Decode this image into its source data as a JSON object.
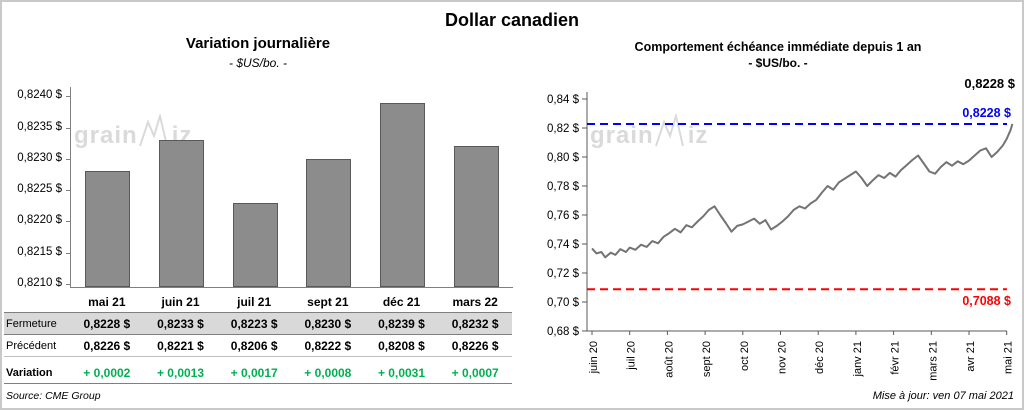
{
  "page": {
    "title": "Dollar canadien",
    "source": "Source: CME Group",
    "updated": "Mise à jour: ven 07 mai 2021",
    "watermark": {
      "pre": "grain",
      "post": "iz"
    }
  },
  "colors": {
    "bar_fill": "#8c8c8c",
    "bar_border": "#595959",
    "line": "#737373",
    "resistance_blue": "#0000ff",
    "support_red": "#ff0000",
    "variation_green": "#00b050",
    "table_shade": "#d9d9d9"
  },
  "chart_data": [
    {
      "type": "bar",
      "title": "Variation journalière",
      "subtitle": "- $US/bo. -",
      "categories": [
        "mai 21",
        "juin 21",
        "juil 21",
        "sept 21",
        "déc 21",
        "mars 22"
      ],
      "values": [
        0.8228,
        0.8233,
        0.8223,
        0.823,
        0.8239,
        0.8232
      ],
      "ylim": [
        0.82095,
        0.82415
      ],
      "yticks": [
        0.821,
        0.8215,
        0.822,
        0.8225,
        0.823,
        0.8235,
        0.824
      ],
      "ytick_labels": [
        "0,8210 $",
        "0,8215 $",
        "0,8220 $",
        "0,8225 $",
        "0,8230 $",
        "0,8235 $",
        "0,8240 $"
      ],
      "grid": false,
      "legend": false
    },
    {
      "type": "line",
      "title": "Comportement échéance immédiate depuis 1 an",
      "subtitle": "- $US/bo. -",
      "x_labels": [
        "juin 20",
        "juil 20",
        "août 20",
        "sept 20",
        "oct 20",
        "nov 20",
        "déc 20",
        "janv 21",
        "févr 21",
        "mars 21",
        "avr 21",
        "mai 21"
      ],
      "ylim": [
        0.68,
        0.8435
      ],
      "yticks": [
        0.68,
        0.7,
        0.72,
        0.74,
        0.76,
        0.78,
        0.8,
        0.82,
        0.84
      ],
      "ytick_labels": [
        "0,68 $",
        "0,70 $",
        "0,72 $",
        "0,74 $",
        "0,76 $",
        "0,78 $",
        "0,80 $",
        "0,82 $",
        "0,84 $"
      ],
      "grid": false,
      "legend": false,
      "annotations": {
        "last_value_label": "0,8228 $",
        "resistance": {
          "value": 0.8228,
          "label": "0,8228 $"
        },
        "support": {
          "value": 0.7088,
          "label": "0,7088 $"
        }
      },
      "series": [
        {
          "name": "échéance immédiate",
          "points": [
            [
              0,
              0.737
            ],
            [
              0.12,
              0.7335
            ],
            [
              0.25,
              0.7345
            ],
            [
              0.35,
              0.7308
            ],
            [
              0.5,
              0.734
            ],
            [
              0.62,
              0.7325
            ],
            [
              0.75,
              0.7365
            ],
            [
              0.9,
              0.7345
            ],
            [
              1.0,
              0.7375
            ],
            [
              1.15,
              0.736
            ],
            [
              1.3,
              0.7395
            ],
            [
              1.45,
              0.738
            ],
            [
              1.6,
              0.742
            ],
            [
              1.75,
              0.7405
            ],
            [
              1.9,
              0.745
            ],
            [
              2.05,
              0.7475
            ],
            [
              2.2,
              0.7505
            ],
            [
              2.35,
              0.748
            ],
            [
              2.5,
              0.753
            ],
            [
              2.65,
              0.7515
            ],
            [
              2.8,
              0.7555
            ],
            [
              2.95,
              0.759
            ],
            [
              3.1,
              0.7635
            ],
            [
              3.25,
              0.766
            ],
            [
              3.4,
              0.76
            ],
            [
              3.55,
              0.7545
            ],
            [
              3.7,
              0.7485
            ],
            [
              3.85,
              0.7525
            ],
            [
              4.0,
              0.7535
            ],
            [
              4.15,
              0.7555
            ],
            [
              4.3,
              0.7575
            ],
            [
              4.45,
              0.754
            ],
            [
              4.6,
              0.7565
            ],
            [
              4.75,
              0.75
            ],
            [
              4.9,
              0.7525
            ],
            [
              5.05,
              0.7555
            ],
            [
              5.2,
              0.759
            ],
            [
              5.35,
              0.7635
            ],
            [
              5.5,
              0.766
            ],
            [
              5.65,
              0.7645
            ],
            [
              5.8,
              0.768
            ],
            [
              5.95,
              0.7705
            ],
            [
              6.1,
              0.7755
            ],
            [
              6.25,
              0.78
            ],
            [
              6.4,
              0.7775
            ],
            [
              6.55,
              0.7825
            ],
            [
              6.7,
              0.785
            ],
            [
              6.85,
              0.7875
            ],
            [
              7.0,
              0.79
            ],
            [
              7.15,
              0.7855
            ],
            [
              7.3,
              0.78
            ],
            [
              7.45,
              0.784
            ],
            [
              7.6,
              0.7875
            ],
            [
              7.75,
              0.7855
            ],
            [
              7.9,
              0.789
            ],
            [
              8.05,
              0.7865
            ],
            [
              8.2,
              0.791
            ],
            [
              8.35,
              0.7945
            ],
            [
              8.5,
              0.798
            ],
            [
              8.65,
              0.801
            ],
            [
              8.8,
              0.7955
            ],
            [
              8.95,
              0.79
            ],
            [
              9.1,
              0.7885
            ],
            [
              9.25,
              0.793
            ],
            [
              9.4,
              0.7965
            ],
            [
              9.55,
              0.794
            ],
            [
              9.7,
              0.797
            ],
            [
              9.85,
              0.795
            ],
            [
              10.0,
              0.7975
            ],
            [
              10.15,
              0.801
            ],
            [
              10.3,
              0.8045
            ],
            [
              10.45,
              0.806
            ],
            [
              10.6,
              0.8
            ],
            [
              10.75,
              0.8035
            ],
            [
              10.9,
              0.808
            ],
            [
              11.0,
              0.8125
            ],
            [
              11.1,
              0.8185
            ],
            [
              11.15,
              0.8228
            ]
          ]
        }
      ]
    }
  ],
  "table": {
    "rows": [
      {
        "label": "Fermeture",
        "values": [
          "0,8228  $",
          "0,8233  $",
          "0,8223  $",
          "0,8230  $",
          "0,8239  $",
          "0,8232  $"
        ]
      },
      {
        "label": "Précédent",
        "values": [
          "0,8226  $",
          "0,8221  $",
          "0,8206  $",
          "0,8222  $",
          "0,8208  $",
          "0,8226  $"
        ]
      },
      {
        "label": "Variation",
        "values": [
          "+ 0,0002",
          "+ 0,0013",
          "+ 0,0017",
          "+ 0,0008",
          "+ 0,0031",
          "+ 0,0007"
        ]
      }
    ]
  }
}
